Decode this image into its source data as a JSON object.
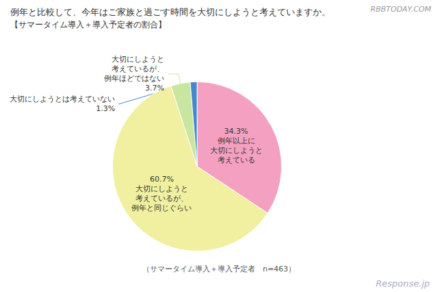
{
  "chart_data": {
    "type": "pie",
    "title": "例年と比較して、今年はご家族と過ごす時間を大切にしようと考えていますか。",
    "subtitle": "【サマータイム導入＋導入予定者の割合】",
    "categories": [
      "例年以上に\n大切にしようと\n考えている",
      "大切にしようと\n考えているが、\n例年と同じぐらい",
      "大切にしようと\n考えているが、\n例年ほどではない",
      "大切にしようとは考えていない"
    ],
    "values": [
      34.3,
      60.7,
      3.7,
      1.3
    ],
    "value_labels": [
      "34.3%",
      "60.7%",
      "3.7%",
      "1.3%"
    ],
    "colors": [
      "#F4A0C0",
      "#F0F0A0",
      "#C8E6A0",
      "#4488CC"
    ],
    "data_labels": true,
    "annotations": [
      "RBBTODAY.COM",
      "（サマータイム導入＋導入予定者　n=463）",
      "Response.jp"
    ]
  }
}
